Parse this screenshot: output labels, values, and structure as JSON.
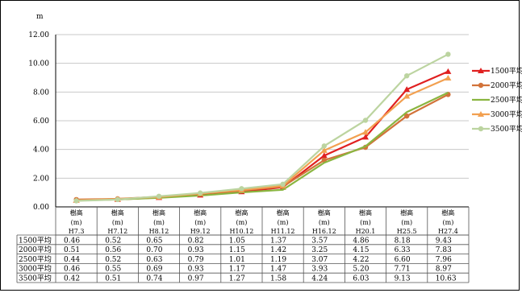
{
  "chart_data": {
    "type": "line",
    "title": "",
    "ylabel": "m",
    "ylim": [
      0,
      12
    ],
    "yticks": [
      "0.00",
      "2.00",
      "4.00",
      "6.00",
      "8.00",
      "10.00",
      "12.00"
    ],
    "row_header": "樹高",
    "unit": "(m)",
    "categories": [
      "H7.3",
      "H7.12",
      "H8.12",
      "H9.12",
      "H10.12",
      "H11.12",
      "H16.12",
      "H20.1",
      "H25.5",
      "H27.4"
    ],
    "grid": true,
    "legend": "right",
    "series": [
      {
        "name": "1500平均",
        "color": "#e02020",
        "marker": "triangle",
        "values": [
          0.46,
          0.52,
          0.65,
          0.82,
          1.05,
          1.37,
          3.57,
          4.86,
          8.18,
          9.43
        ],
        "labels": [
          "0.46",
          "0.52",
          "0.65",
          "0.82",
          "1.05",
          "1.37",
          "3.57",
          "4.86",
          "8.18",
          "9.43"
        ]
      },
      {
        "name": "2000平均",
        "color": "#d2733a",
        "marker": "circle",
        "values": [
          0.51,
          0.56,
          0.7,
          0.93,
          1.15,
          1.42,
          3.25,
          4.15,
          6.33,
          7.83
        ],
        "labels": [
          "0.51",
          "0.56",
          "0.70",
          "0.93",
          "1.15",
          "1.42",
          "3.25",
          "4.15",
          "6.33",
          "7.83"
        ]
      },
      {
        "name": "2500平均",
        "color": "#8ab540",
        "marker": "line",
        "values": [
          0.44,
          0.52,
          0.63,
          0.79,
          1.01,
          1.19,
          3.07,
          4.22,
          6.6,
          7.96
        ],
        "labels": [
          "0.44",
          "0.52",
          "0.63",
          "0.79",
          "1.01",
          "1.19",
          "3.07",
          "4.22",
          "6.60",
          "7.96"
        ]
      },
      {
        "name": "3000平均",
        "color": "#f2a050",
        "marker": "triangle",
        "values": [
          0.46,
          0.55,
          0.69,
          0.93,
          1.17,
          1.47,
          3.93,
          5.2,
          7.71,
          8.97
        ],
        "labels": [
          "0.46",
          "0.55",
          "0.69",
          "0.93",
          "1.17",
          "1.47",
          "3.93",
          "5.20",
          "7.71",
          "8.97"
        ]
      },
      {
        "name": "3500平均",
        "color": "#bcd4a0",
        "marker": "circle",
        "values": [
          0.42,
          0.51,
          0.74,
          0.97,
          1.27,
          1.58,
          4.24,
          6.03,
          9.13,
          10.63
        ],
        "labels": [
          "0.42",
          "0.51",
          "0.74",
          "0.97",
          "1.27",
          "1.58",
          "4.24",
          "6.03",
          "9.13",
          "10.63"
        ]
      }
    ]
  }
}
